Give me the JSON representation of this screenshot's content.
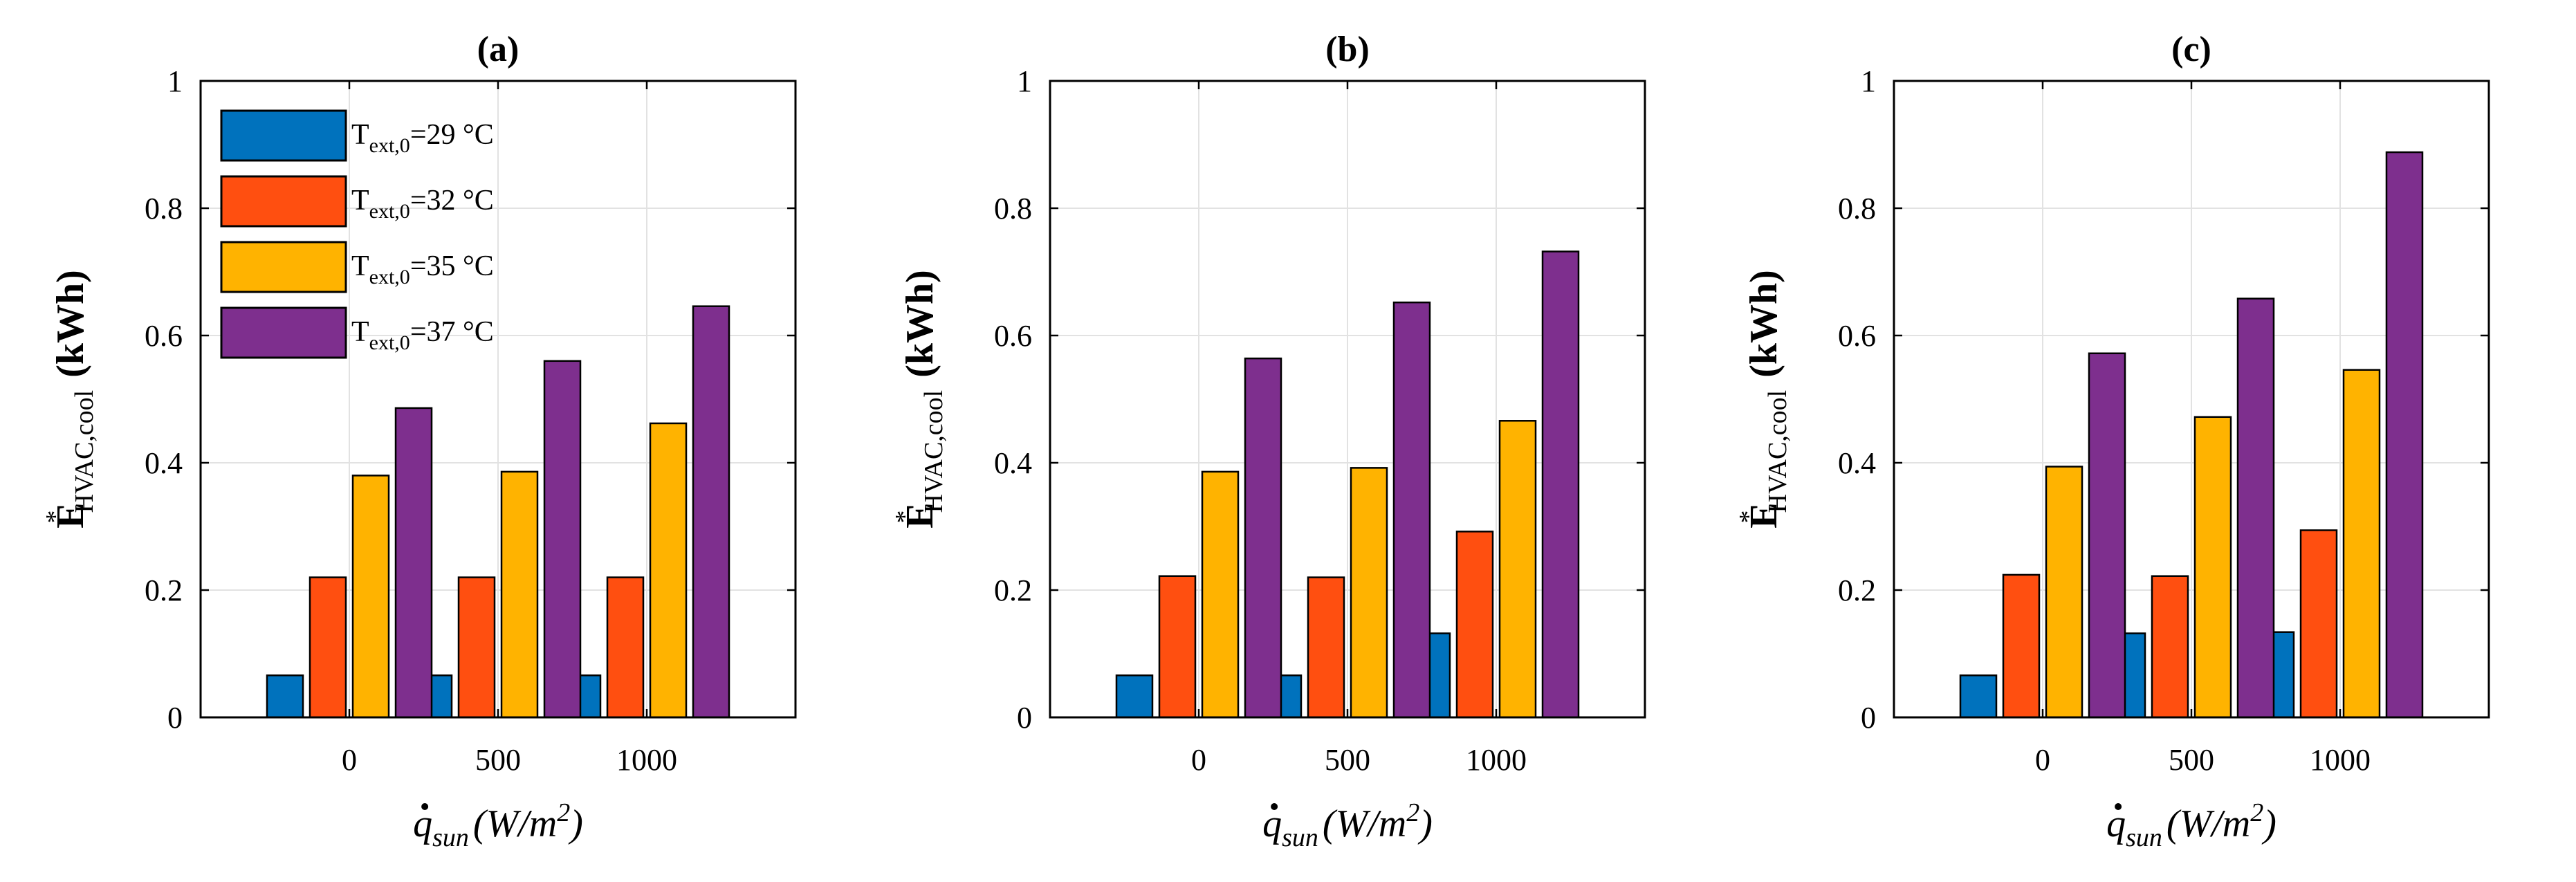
{
  "chart_data": [
    {
      "type": "bar",
      "title": "(a)",
      "categories": [
        "0",
        "500",
        "1000"
      ],
      "ylim": [
        0,
        1
      ],
      "yticks": [
        "0",
        "0.2",
        "0.4",
        "0.6",
        "0.8",
        "1"
      ],
      "ylabel": {
        "main": "E",
        "sup": "*",
        "sub": "HVAC,cool",
        "unit": "(kWh)"
      },
      "xlabel": {
        "main": "q",
        "sub": "sun",
        "unit": "(W/m",
        "unit_sup": "2",
        "unit_end": ")"
      },
      "grid": true,
      "series": [
        {
          "name": "T_ext,0=29 °C",
          "values": [
            0.066,
            0.066,
            0.066
          ]
        },
        {
          "name": "T_ext,0=32 °C",
          "values": [
            0.22,
            0.22,
            0.22
          ]
        },
        {
          "name": "T_ext,0=35 °C",
          "values": [
            0.38,
            0.386,
            0.462
          ]
        },
        {
          "name": "T_ext,0=37 °C",
          "values": [
            0.486,
            0.56,
            0.646
          ]
        }
      ],
      "legend": "top-left"
    },
    {
      "type": "bar",
      "title": "(b)",
      "categories": [
        "0",
        "500",
        "1000"
      ],
      "ylim": [
        0,
        1
      ],
      "yticks": [
        "0",
        "0.2",
        "0.4",
        "0.6",
        "0.8",
        "1"
      ],
      "ylabel": {
        "main": "E",
        "sup": "*",
        "sub": "HVAC,cool",
        "unit": "(kWh)"
      },
      "xlabel": {
        "main": "q",
        "sub": "sun",
        "unit": "(W/m",
        "unit_sup": "2",
        "unit_end": ")"
      },
      "grid": true,
      "series": [
        {
          "name": "T_ext,0=29 °C",
          "values": [
            0.066,
            0.066,
            0.132
          ]
        },
        {
          "name": "T_ext,0=32 °C",
          "values": [
            0.222,
            0.22,
            0.292
          ]
        },
        {
          "name": "T_ext,0=35 °C",
          "values": [
            0.386,
            0.392,
            0.466
          ]
        },
        {
          "name": "T_ext,0=37 °C",
          "values": [
            0.564,
            0.652,
            0.732
          ]
        }
      ]
    },
    {
      "type": "bar",
      "title": "(c)",
      "categories": [
        "0",
        "500",
        "1000"
      ],
      "ylim": [
        0,
        1
      ],
      "yticks": [
        "0",
        "0.2",
        "0.4",
        "0.6",
        "0.8",
        "1"
      ],
      "ylabel": {
        "main": "E",
        "sup": "*",
        "sub": "HVAC,cool",
        "unit": "(kWh)"
      },
      "xlabel": {
        "main": "q",
        "sub": "sun",
        "unit": "(W/m",
        "unit_sup": "2",
        "unit_end": ")"
      },
      "grid": true,
      "series": [
        {
          "name": "T_ext,0=29 °C",
          "values": [
            0.066,
            0.132,
            0.134
          ]
        },
        {
          "name": "T_ext,0=32 °C",
          "values": [
            0.224,
            0.222,
            0.294
          ]
        },
        {
          "name": "T_ext,0=35 °C",
          "values": [
            0.394,
            0.472,
            0.546
          ]
        },
        {
          "name": "T_ext,0=37 °C",
          "values": [
            0.572,
            0.658,
            0.888
          ]
        }
      ]
    }
  ],
  "legend_entries": [
    {
      "main": "T",
      "sub": "ext,0",
      "rest": "=29 °C"
    },
    {
      "main": "T",
      "sub": "ext,0",
      "rest": "=32 °C"
    },
    {
      "main": "T",
      "sub": "ext,0",
      "rest": "=35 °C"
    },
    {
      "main": "T",
      "sub": "ext,0",
      "rest": "=37 °C"
    }
  ],
  "colors": {
    "series": [
      "#0072BD",
      "#FF4F10",
      "#FFB300",
      "#7E2F8E"
    ],
    "grid": "#e2e2e2",
    "axis": "#000000"
  }
}
